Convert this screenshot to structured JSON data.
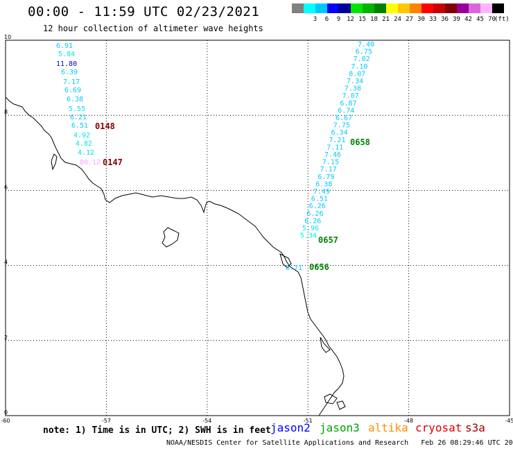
{
  "header": {
    "title": "00:00 - 11:59 UTC 02/23/2021",
    "subtitle": "12 hour collection of altimeter wave heights"
  },
  "legend": {
    "swatches": [
      {
        "color": "#808080",
        "label": ""
      },
      {
        "color": "#00ffff",
        "label": "3"
      },
      {
        "color": "#00c8ff",
        "label": "6"
      },
      {
        "color": "#0000ff",
        "label": "9"
      },
      {
        "color": "#000096",
        "label": "12"
      },
      {
        "color": "#00e600",
        "label": "15"
      },
      {
        "color": "#00b400",
        "label": "18"
      },
      {
        "color": "#008200",
        "label": "21"
      },
      {
        "color": "#ffff00",
        "label": "24"
      },
      {
        "color": "#ffc800",
        "label": "27"
      },
      {
        "color": "#ff8200",
        "label": "30"
      },
      {
        "color": "#ff0000",
        "label": "33"
      },
      {
        "color": "#c80000",
        "label": "36"
      },
      {
        "color": "#820000",
        "label": "39"
      },
      {
        "color": "#960096",
        "label": "42"
      },
      {
        "color": "#dc64dc",
        "label": "45"
      },
      {
        "color": "#ffb4ff",
        "label": "70"
      },
      {
        "color": "#000000",
        "label": ""
      }
    ],
    "unit": "(ft)"
  },
  "axes": {
    "x_ticks": [
      "-60",
      "-57",
      "-54",
      "-51",
      "-48",
      "-45"
    ],
    "y_ticks": [
      "0",
      "2",
      "4",
      "6",
      "8",
      "10"
    ],
    "lon_range": [
      -60,
      -45
    ],
    "lat_range": [
      0,
      10
    ]
  },
  "tracks": [
    {
      "id": "pass-0148-0147",
      "readings": [
        {
          "value": "6.91",
          "color": "#00c8ff"
        },
        {
          "value": "5.84",
          "color": "#00e6e6"
        },
        {
          "value": "11.80",
          "color": "#0000c8"
        },
        {
          "value": "6.39",
          "color": "#00c8ff"
        },
        {
          "value": "7.17",
          "color": "#00c8ff"
        },
        {
          "value": "6.69",
          "color": "#00c8ff"
        },
        {
          "value": "6.38",
          "color": "#00c8ff"
        },
        {
          "value": "5.55",
          "color": "#00e6e6"
        },
        {
          "value": "6.21",
          "color": "#00c8ff"
        },
        {
          "value": "6.51",
          "color": "#00c8ff"
        },
        {
          "value": "4.92",
          "color": "#00e6e6"
        },
        {
          "value": "4.82",
          "color": "#00e6e6"
        },
        {
          "value": "4.12",
          "color": "#00e6e6"
        },
        {
          "value": "80.12",
          "color": "#ffa0ff"
        }
      ],
      "time_labels": [
        {
          "text": "0148",
          "color": "#820000"
        },
        {
          "text": "0147",
          "color": "#820000"
        }
      ]
    },
    {
      "id": "pass-0658-0656",
      "readings": [
        {
          "value": "7.40",
          "color": "#00c8ff"
        },
        {
          "value": "6.75",
          "color": "#00c8ff"
        },
        {
          "value": "7.02",
          "color": "#00c8ff"
        },
        {
          "value": "7.10",
          "color": "#00c8ff"
        },
        {
          "value": "8.07",
          "color": "#00c8ff"
        },
        {
          "value": "7.34",
          "color": "#00c8ff"
        },
        {
          "value": "7.38",
          "color": "#00c8ff"
        },
        {
          "value": "7.07",
          "color": "#00c8ff"
        },
        {
          "value": "6.87",
          "color": "#00c8ff"
        },
        {
          "value": "6.74",
          "color": "#00c8ff"
        },
        {
          "value": "6.67",
          "color": "#00c8ff"
        },
        {
          "value": "7.75",
          "color": "#00c8ff"
        },
        {
          "value": "6.34",
          "color": "#00c8ff"
        },
        {
          "value": "7.21",
          "color": "#00c8ff"
        },
        {
          "value": "7.11",
          "color": "#00c8ff"
        },
        {
          "value": "7.46",
          "color": "#00c8ff"
        },
        {
          "value": "7.15",
          "color": "#00c8ff"
        },
        {
          "value": "7.17",
          "color": "#00c8ff"
        },
        {
          "value": "6.79",
          "color": "#00c8ff"
        },
        {
          "value": "6.38",
          "color": "#00c8ff"
        },
        {
          "value": "7.49",
          "color": "#00c8ff"
        },
        {
          "value": "6.51",
          "color": "#00c8ff"
        },
        {
          "value": "6.26",
          "color": "#00c8ff"
        },
        {
          "value": "6.26",
          "color": "#00c8ff"
        },
        {
          "value": "6.26",
          "color": "#00c8ff"
        },
        {
          "value": "5.96",
          "color": "#00e6e6"
        },
        {
          "value": "5.34",
          "color": "#00e6e6"
        },
        {
          "value": "6.71",
          "color": "#00c8ff"
        }
      ],
      "time_labels": [
        {
          "text": "0658",
          "color": "#008200"
        },
        {
          "text": "0657",
          "color": "#008200"
        },
        {
          "text": "0656",
          "color": "#008200"
        }
      ]
    }
  ],
  "footer": {
    "note": "note: 1) Time is in UTC; 2) SWH is in feet",
    "satellites": [
      {
        "name": "jason2",
        "color": "#0000ff"
      },
      {
        "name": "jason3",
        "color": "#00a000"
      },
      {
        "name": "altika",
        "color": "#ff8c00"
      },
      {
        "name": "cryosat",
        "color": "#e00000"
      },
      {
        "name": "s3a",
        "color": "#a00000"
      }
    ],
    "credit": "NOAA/NESDIS Center for Satellite Applications and Research   Feb 26 08:29:46 UTC 2021"
  }
}
